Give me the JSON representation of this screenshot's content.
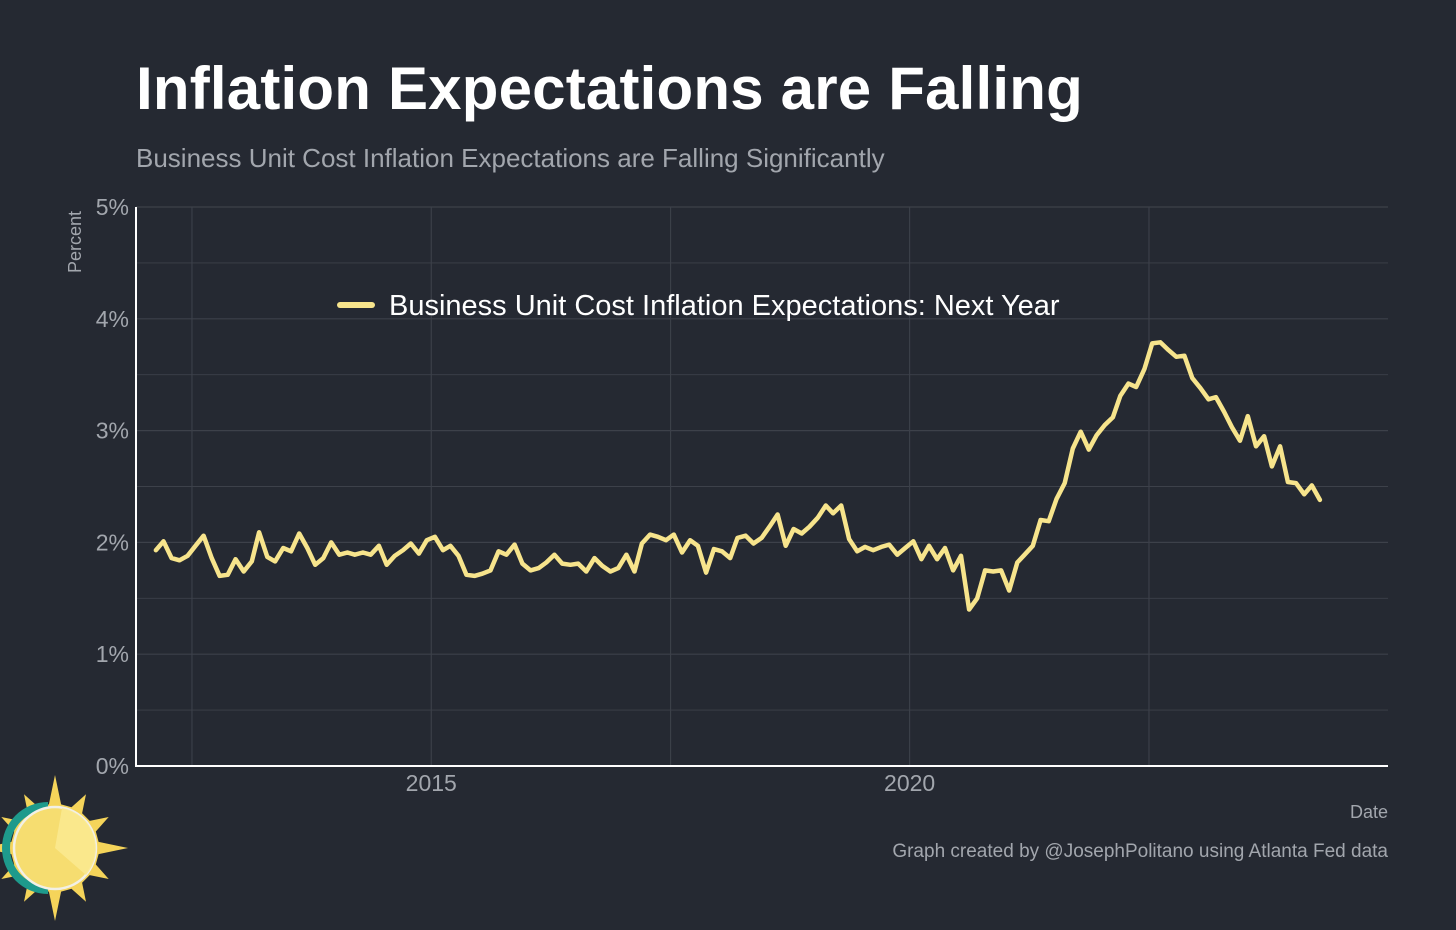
{
  "title": "Inflation Expectations are Falling",
  "subtitle": "Business Unit Cost Inflation Expectations are Falling Significantly",
  "credit": "Graph created by @JosephPolitano using Atlanta Fed data",
  "logo_icon": "sun-logo-icon",
  "colors": {
    "background": "#252932",
    "line": "#f7e48c",
    "grid": "#3d414a",
    "axis": "#ffffff",
    "muted_text": "#a2a6ad"
  },
  "chart_data": {
    "type": "line",
    "title": "Inflation Expectations are Falling",
    "subtitle": "Business Unit Cost Inflation Expectations are Falling Significantly",
    "xlabel": "Date",
    "ylabel": "Percent",
    "x_ticks": [
      "2015",
      "2020"
    ],
    "y_ticks": [
      "0%",
      "1%",
      "2%",
      "3%",
      "4%",
      "5%"
    ],
    "xlim": [
      "2011-12-01",
      "2024-12-31"
    ],
    "ylim": [
      0,
      5
    ],
    "grid": true,
    "legend_position": "top-left",
    "series": [
      {
        "name": "Business Unit Cost Inflation Expectations: Next Year",
        "color": "#f7e48c",
        "x": [
          "2012-02",
          "2012-03",
          "2012-04",
          "2012-05",
          "2012-06",
          "2012-07",
          "2012-08",
          "2012-09",
          "2012-10",
          "2012-11",
          "2012-12",
          "2013-01",
          "2013-02",
          "2013-03",
          "2013-04",
          "2013-05",
          "2013-06",
          "2013-07",
          "2013-08",
          "2013-09",
          "2013-10",
          "2013-11",
          "2013-12",
          "2014-01",
          "2014-02",
          "2014-03",
          "2014-04",
          "2014-05",
          "2014-06",
          "2014-07",
          "2014-08",
          "2014-09",
          "2014-10",
          "2014-11",
          "2014-12",
          "2015-01",
          "2015-02",
          "2015-03",
          "2015-04",
          "2015-05",
          "2015-06",
          "2015-07",
          "2015-08",
          "2015-09",
          "2015-10",
          "2015-11",
          "2015-12",
          "2016-01",
          "2016-02",
          "2016-03",
          "2016-04",
          "2016-05",
          "2016-06",
          "2016-07",
          "2016-08",
          "2016-09",
          "2016-10",
          "2016-11",
          "2016-12",
          "2017-01",
          "2017-02",
          "2017-03",
          "2017-04",
          "2017-05",
          "2017-06",
          "2017-07",
          "2017-08",
          "2017-09",
          "2017-10",
          "2017-11",
          "2017-12",
          "2018-01",
          "2018-02",
          "2018-03",
          "2018-04",
          "2018-05",
          "2018-06",
          "2018-07",
          "2018-08",
          "2018-09",
          "2018-10",
          "2018-11",
          "2018-12",
          "2019-01",
          "2019-02",
          "2019-03",
          "2019-04",
          "2019-05",
          "2019-06",
          "2019-07",
          "2019-08",
          "2019-09",
          "2019-10",
          "2019-11",
          "2019-12",
          "2020-01",
          "2020-02",
          "2020-03",
          "2020-04",
          "2020-05",
          "2020-06",
          "2020-07",
          "2020-08",
          "2020-09",
          "2020-10",
          "2020-11",
          "2020-12",
          "2021-01",
          "2021-02",
          "2021-03",
          "2021-04",
          "2021-05",
          "2021-06",
          "2021-07",
          "2021-08",
          "2021-09",
          "2021-10",
          "2021-11",
          "2021-12",
          "2022-01",
          "2022-02",
          "2022-03",
          "2022-04",
          "2022-05",
          "2022-06",
          "2022-07",
          "2022-08",
          "2022-09",
          "2022-10",
          "2022-11",
          "2022-12",
          "2023-01",
          "2023-02",
          "2023-03",
          "2023-04",
          "2023-05",
          "2023-06",
          "2023-07",
          "2023-08",
          "2023-09",
          "2023-10",
          "2023-11",
          "2023-12",
          "2024-01",
          "2024-02",
          "2024-03",
          "2024-04"
        ],
        "values": [
          1.93,
          2.01,
          1.86,
          1.84,
          1.88,
          1.97,
          2.06,
          1.86,
          1.7,
          1.71,
          1.85,
          1.74,
          1.83,
          2.09,
          1.87,
          1.83,
          1.95,
          1.92,
          2.08,
          1.95,
          1.8,
          1.86,
          2.0,
          1.89,
          1.91,
          1.89,
          1.91,
          1.89,
          1.97,
          1.8,
          1.88,
          1.93,
          1.99,
          1.9,
          2.02,
          2.05,
          1.93,
          1.97,
          1.88,
          1.71,
          1.7,
          1.72,
          1.75,
          1.92,
          1.89,
          1.98,
          1.81,
          1.75,
          1.77,
          1.82,
          1.89,
          1.81,
          1.8,
          1.81,
          1.74,
          1.86,
          1.79,
          1.74,
          1.77,
          1.89,
          1.74,
          1.99,
          2.07,
          2.05,
          2.02,
          2.07,
          1.91,
          2.02,
          1.97,
          1.73,
          1.94,
          1.92,
          1.86,
          2.04,
          2.06,
          1.99,
          2.04,
          2.14,
          2.25,
          1.97,
          2.12,
          2.08,
          2.14,
          2.22,
          2.33,
          2.26,
          2.33,
          2.03,
          1.92,
          1.96,
          1.93,
          1.96,
          1.98,
          1.89,
          1.95,
          2.01,
          1.85,
          1.97,
          1.85,
          1.95,
          1.75,
          1.88,
          1.4,
          1.5,
          1.75,
          1.74,
          1.75,
          1.57,
          1.82,
          1.89,
          1.97,
          2.2,
          2.19,
          2.39,
          2.53,
          2.84,
          2.99,
          2.83,
          2.96,
          3.05,
          3.12,
          3.31,
          3.42,
          3.39,
          3.55,
          3.78,
          3.79,
          3.72,
          3.66,
          3.67,
          3.47,
          3.38,
          3.28,
          3.3,
          3.17,
          3.03,
          2.91,
          3.13,
          2.86,
          2.95,
          2.68,
          2.86,
          2.54,
          2.53,
          2.43,
          2.51,
          2.38
        ]
      }
    ]
  }
}
